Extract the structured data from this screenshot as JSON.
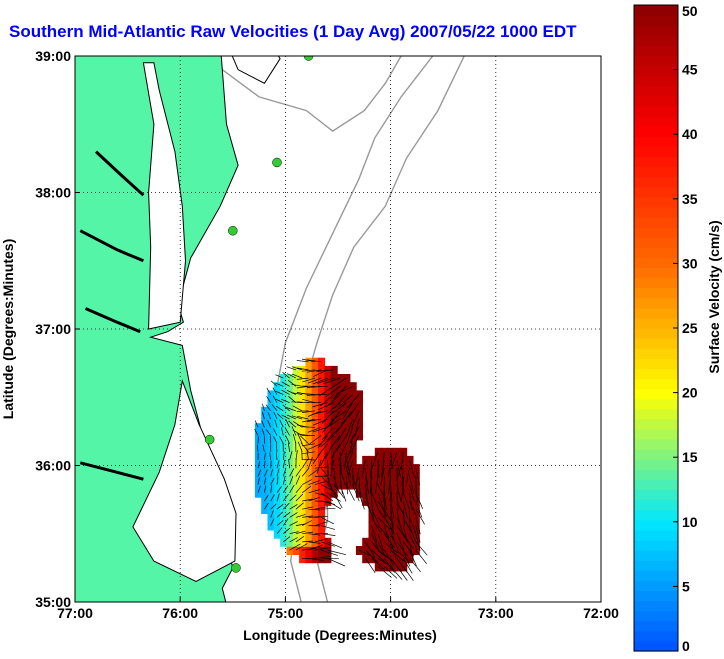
{
  "chart_data": {
    "type": "heatmap",
    "title": "Southern Mid-Atlantic Raw Velocities (1 Day Avg) 2007/05/22 1000 EDT",
    "xlabel": "Longitude (Degrees:Minutes)",
    "ylabel": "Latitude (Degrees:Minutes)",
    "xlim": [
      -77,
      -72
    ],
    "ylim": [
      35,
      39
    ],
    "x_ticks": [
      {
        "value": -77,
        "label": "77:00"
      },
      {
        "value": -76,
        "label": "76:00"
      },
      {
        "value": -75,
        "label": "75:00"
      },
      {
        "value": -74,
        "label": "74:00"
      },
      {
        "value": -73,
        "label": "73:00"
      },
      {
        "value": -72,
        "label": "72:00"
      }
    ],
    "y_ticks": [
      {
        "value": 35,
        "label": "35:00"
      },
      {
        "value": 36,
        "label": "36:00"
      },
      {
        "value": 37,
        "label": "37:00"
      },
      {
        "value": 38,
        "label": "38:00"
      },
      {
        "value": 39,
        "label": "39:00"
      }
    ],
    "grid": true,
    "colorbar": {
      "label": "Surface Velocity (cm/s)",
      "range": [
        0,
        50
      ],
      "ticks": [
        {
          "value": 0,
          "label": "0"
        },
        {
          "value": 5,
          "label": "5"
        },
        {
          "value": 10,
          "label": "10"
        },
        {
          "value": 15,
          "label": "15"
        },
        {
          "value": 20,
          "label": "20"
        },
        {
          "value": 25,
          "label": "25"
        },
        {
          "value": 30,
          "label": "30"
        },
        {
          "value": 35,
          "label": "35"
        },
        {
          "value": 40,
          "label": "40"
        },
        {
          "value": 45,
          "label": "45"
        },
        {
          "value": 50,
          "label": "50"
        }
      ],
      "colormap": [
        "#0050ff",
        "#00e8ff",
        "#ffff00",
        "#ff6a00",
        "#ff0000",
        "#8b0000"
      ]
    },
    "colors": {
      "land": "#55f5a8",
      "coast": "#000000",
      "bathymetry": "#999999",
      "stations": "#33cc33",
      "arrows": "#000000"
    },
    "stations": [
      {
        "lon": -74.78,
        "lat": 39.0
      },
      {
        "lon": -75.08,
        "lat": 38.22
      },
      {
        "lon": -75.5,
        "lat": 37.72
      },
      {
        "lon": -75.72,
        "lat": 36.19
      },
      {
        "lon": -75.47,
        "lat": 35.25
      }
    ]
  }
}
